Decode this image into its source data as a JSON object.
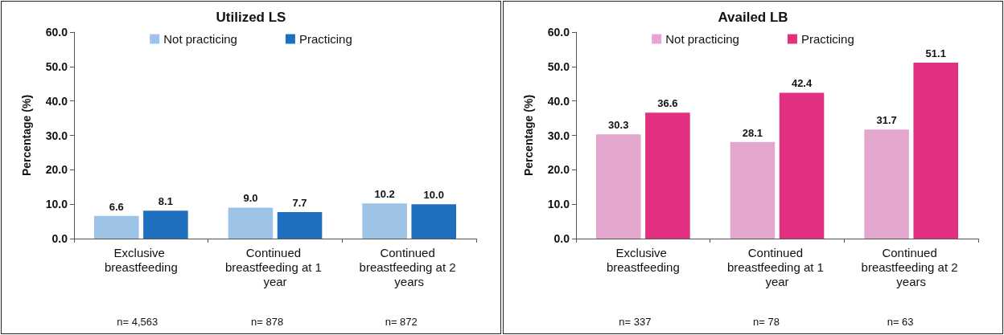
{
  "chart_data": [
    {
      "type": "bar",
      "title": "Utilized LS",
      "ylabel": "Percentage (%)",
      "categories": [
        "Exclusive breastfeeding",
        "Continued breastfeeding at 1 year",
        "Continued breastfeeding at 2 years"
      ],
      "series": [
        {
          "name": "Not practicing",
          "color": "#9dc3e6",
          "values": [
            6.6,
            9.0,
            10.2
          ],
          "value_labels": [
            "6.6",
            "9.0",
            "10.2"
          ]
        },
        {
          "name": "Practicing",
          "color": "#1f6fbf",
          "values": [
            8.1,
            7.7,
            10.0
          ],
          "value_labels": [
            "8.1",
            "7.7",
            "10.0"
          ]
        }
      ],
      "ylim": [
        0,
        60
      ],
      "yticks": [
        {
          "value": 0,
          "label": "0.0"
        },
        {
          "value": 10,
          "label": "10.0"
        },
        {
          "value": 20,
          "label": "20.0"
        },
        {
          "value": 30,
          "label": "30.0"
        },
        {
          "value": 40,
          "label": "40.0"
        },
        {
          "value": 50,
          "label": "50.0"
        },
        {
          "value": 60,
          "label": "60.0"
        }
      ],
      "grid": false,
      "legend": "top",
      "annotations": [
        "n= 4,563",
        "n= 878",
        "n= 872"
      ]
    },
    {
      "type": "bar",
      "title": "Availed LB",
      "ylabel": "Percentage (%)",
      "categories": [
        "Exclusive breastfeeding",
        "Continued breastfeeding at 1 year",
        "Continued breastfeeding at 2 years"
      ],
      "series": [
        {
          "name": "Not practicing",
          "color": "#e3a6cc",
          "values": [
            30.3,
            28.1,
            31.7
          ],
          "value_labels": [
            "30.3",
            "28.1",
            "31.7"
          ]
        },
        {
          "name": "Practicing",
          "color": "#e0307f",
          "values": [
            36.6,
            42.4,
            51.1
          ],
          "value_labels": [
            "36.6",
            "42.4",
            "51.1"
          ]
        }
      ],
      "ylim": [
        0,
        60
      ],
      "yticks": [
        {
          "value": 0,
          "label": "0.0"
        },
        {
          "value": 10,
          "label": "10.0"
        },
        {
          "value": 20,
          "label": "20.0"
        },
        {
          "value": 30,
          "label": "30.0"
        },
        {
          "value": 40,
          "label": "40.0"
        },
        {
          "value": 50,
          "label": "50.0"
        },
        {
          "value": 60,
          "label": "60.0"
        }
      ],
      "grid": false,
      "legend": "top",
      "annotations": [
        "n= 337",
        "n= 78",
        "n= 63"
      ]
    }
  ]
}
